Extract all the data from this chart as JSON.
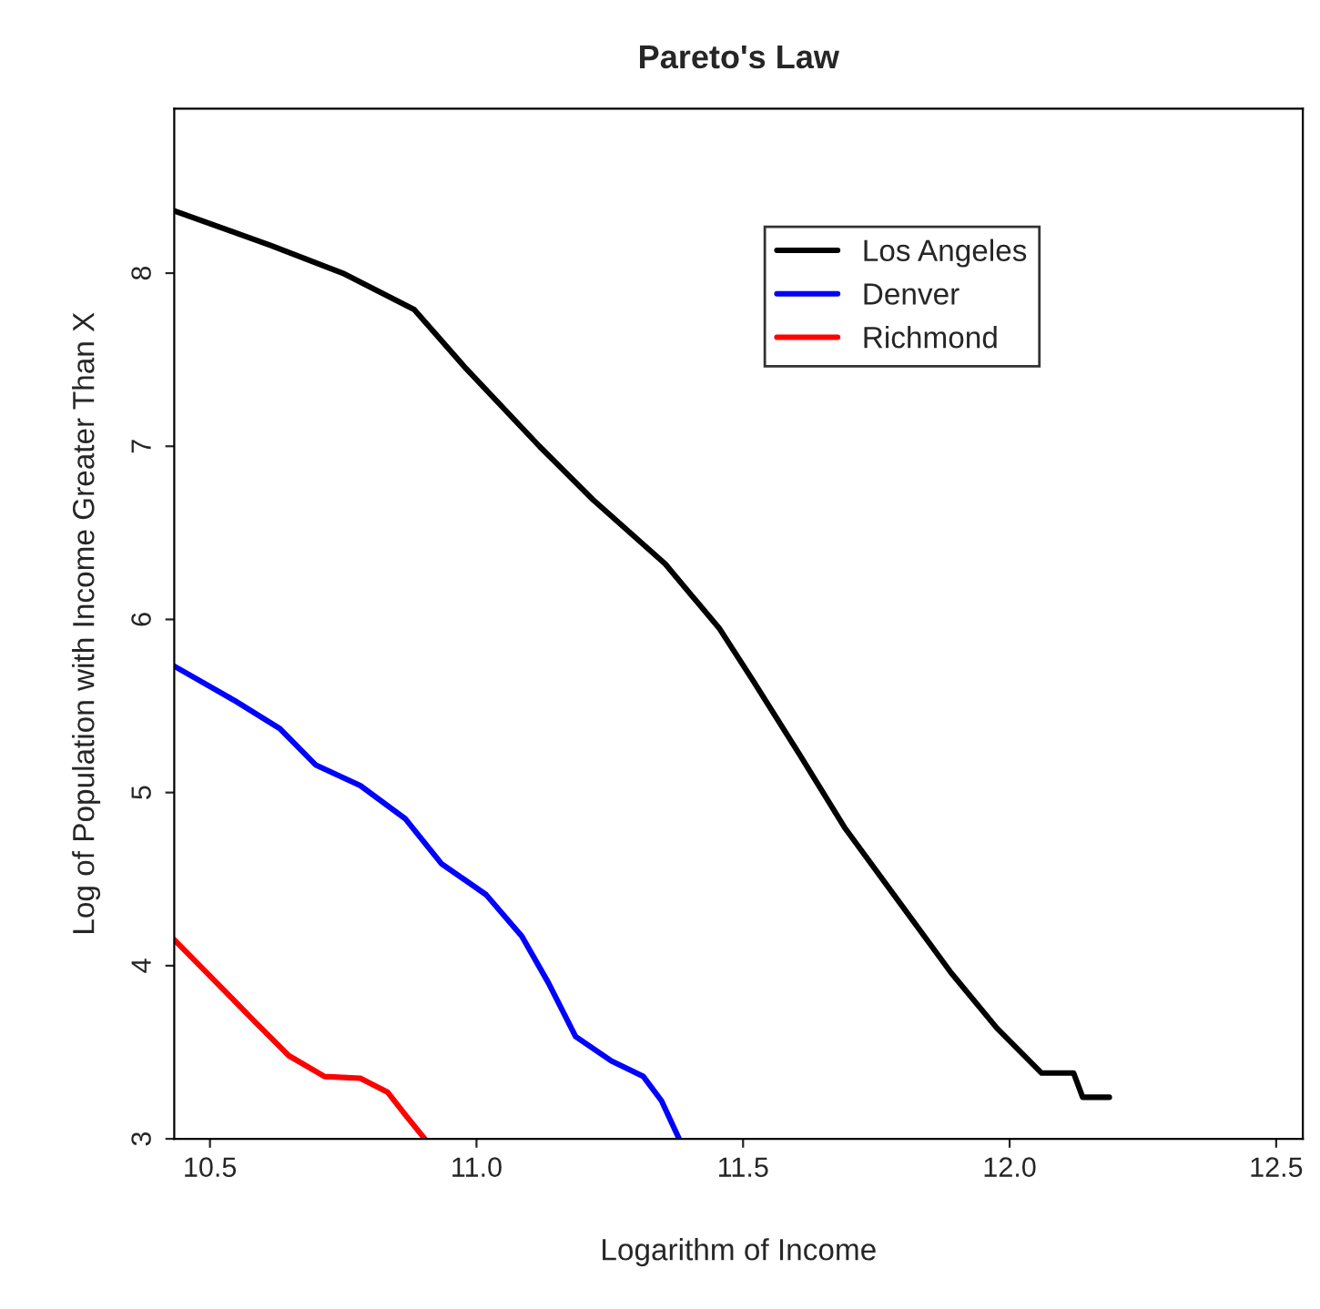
{
  "chart_data": {
    "type": "line",
    "title": "Pareto's Law",
    "xlabel": "Logarithm of Income",
    "ylabel": "Log of Population with Income Greater Than X",
    "xlim": [
      10.433,
      12.55
    ],
    "ylim": [
      3,
      8.95
    ],
    "xticks": [
      10.5,
      {
        "value": 11,
        "label": "11.0"
      },
      11.5,
      {
        "value": 12,
        "label": "12.0"
      },
      12.5
    ],
    "yticks": [
      3,
      4,
      5,
      6,
      7,
      8
    ],
    "grid": false,
    "legend": "top right",
    "marker": "none",
    "line_style": "solid",
    "series": [
      {
        "name": "Los Angeles",
        "color": "#000000",
        "x": [
          10.433,
          10.614,
          10.749,
          10.883,
          10.98,
          11.118,
          11.219,
          11.354,
          11.455,
          11.52,
          11.606,
          11.69,
          11.79,
          11.89,
          11.976,
          12.06,
          12.12,
          12.137,
          12.187
        ],
        "values": [
          8.36,
          8.16,
          8.0,
          7.79,
          7.45,
          7.0,
          6.69,
          6.32,
          5.95,
          5.64,
          5.22,
          4.8,
          4.38,
          3.96,
          3.64,
          3.38,
          3.38,
          3.24,
          3.24
        ]
      },
      {
        "name": "Denver",
        "color": "#0000ff",
        "x": [
          10.433,
          10.547,
          10.631,
          10.698,
          10.782,
          10.866,
          10.934,
          11.018,
          11.085,
          11.135,
          11.186,
          11.253,
          11.313,
          11.347,
          11.38
        ],
        "values": [
          5.73,
          5.53,
          5.37,
          5.16,
          5.04,
          4.85,
          4.59,
          4.41,
          4.17,
          3.9,
          3.59,
          3.45,
          3.36,
          3.22,
          3.0
        ]
      },
      {
        "name": "Richmond",
        "color": "#ff0000",
        "x": [
          10.433,
          10.513,
          10.58,
          10.648,
          10.715,
          10.782,
          10.833,
          10.866,
          10.903
        ],
        "values": [
          4.15,
          3.9,
          3.69,
          3.48,
          3.36,
          3.35,
          3.27,
          3.14,
          3.0
        ]
      }
    ]
  }
}
